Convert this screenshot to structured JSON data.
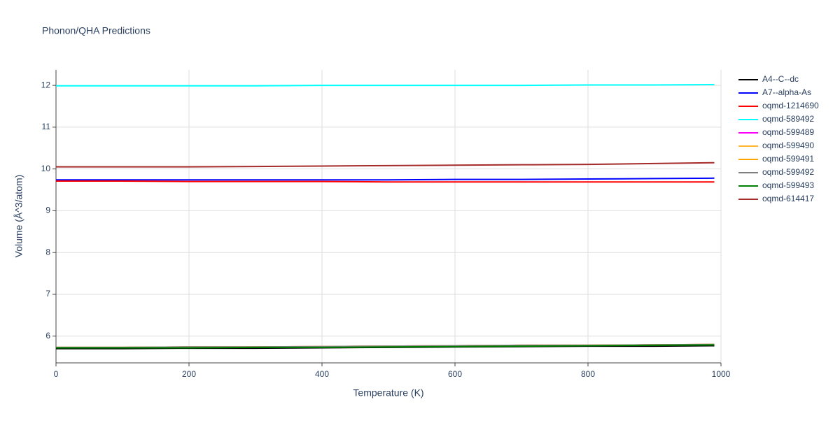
{
  "chart_data": {
    "type": "line",
    "title": "Phonon/QHA Predictions",
    "x_label": "Temperature (K)",
    "y_label": "Volume (Å^3/atom)",
    "x": [
      0,
      100,
      200,
      300,
      400,
      500,
      600,
      700,
      800,
      900,
      990
    ],
    "series": [
      {
        "name": "A4--C--dc",
        "color": "#000000",
        "values": [
          5.7,
          5.7,
          5.71,
          5.71,
          5.72,
          5.73,
          5.74,
          5.75,
          5.76,
          5.76,
          5.77
        ]
      },
      {
        "name": "A7--alpha-As",
        "color": "#0000ff",
        "values": [
          9.74,
          9.74,
          9.74,
          9.74,
          9.74,
          9.74,
          9.75,
          9.75,
          9.76,
          9.77,
          9.78
        ]
      },
      {
        "name": "oqmd-1214690",
        "color": "#ff0000",
        "values": [
          9.71,
          9.71,
          9.7,
          9.7,
          9.7,
          9.69,
          9.69,
          9.69,
          9.69,
          9.69,
          9.69
        ]
      },
      {
        "name": "oqmd-589492",
        "color": "#00ffff",
        "values": [
          11.99,
          11.99,
          11.99,
          11.99,
          12.0,
          12.0,
          12.0,
          12.0,
          12.01,
          12.01,
          12.02
        ]
      },
      {
        "name": "oqmd-599489",
        "color": "#ff00ff",
        "values": [
          5.73,
          5.73,
          5.74,
          5.74,
          5.75,
          5.76,
          5.77,
          5.78,
          5.78,
          5.79,
          5.8
        ]
      },
      {
        "name": "oqmd-599490",
        "color": "#ffb52e",
        "values": [
          5.73,
          5.73,
          5.74,
          5.74,
          5.75,
          5.76,
          5.77,
          5.78,
          5.78,
          5.79,
          5.8
        ]
      },
      {
        "name": "oqmd-599491",
        "color": "#ffa500",
        "values": [
          5.73,
          5.73,
          5.74,
          5.74,
          5.75,
          5.76,
          5.77,
          5.78,
          5.78,
          5.79,
          5.8
        ]
      },
      {
        "name": "oqmd-599492",
        "color": "#808080",
        "values": [
          5.73,
          5.73,
          5.74,
          5.74,
          5.75,
          5.76,
          5.77,
          5.78,
          5.78,
          5.79,
          5.8
        ]
      },
      {
        "name": "oqmd-599493",
        "color": "#008000",
        "values": [
          5.72,
          5.72,
          5.72,
          5.73,
          5.73,
          5.74,
          5.75,
          5.76,
          5.77,
          5.78,
          5.79
        ]
      },
      {
        "name": "oqmd-614417",
        "color": "#a52a2a",
        "values": [
          10.05,
          10.05,
          10.05,
          10.06,
          10.07,
          10.08,
          10.09,
          10.1,
          10.11,
          10.13,
          10.15
        ]
      }
    ],
    "xlim": [
      0,
      1000
    ],
    "xticks": [
      0,
      200,
      400,
      600,
      800,
      1000
    ],
    "ylim": [
      5.36,
      12.37
    ],
    "yticks": [
      6,
      7,
      8,
      9,
      10,
      11,
      12
    ],
    "grid": true
  }
}
